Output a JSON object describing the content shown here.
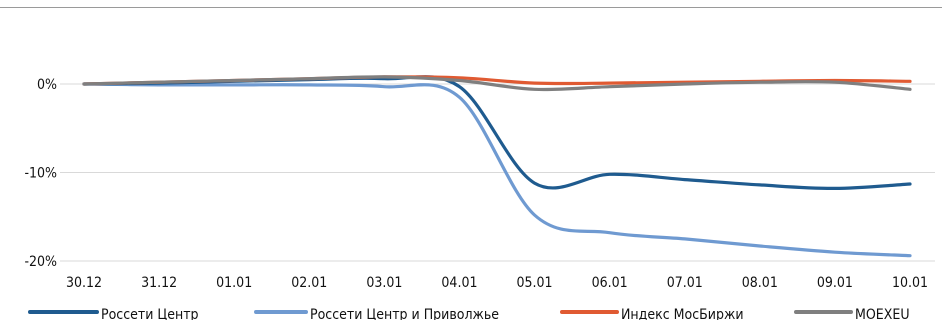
{
  "chart_data": {
    "type": "line",
    "title": "",
    "xlabel": "",
    "ylabel": "",
    "categories": [
      "30.12",
      "31.12",
      "01.01",
      "02.01",
      "03.01",
      "04.01",
      "05.01",
      "06.01",
      "07.01",
      "08.01",
      "09.01",
      "10.01"
    ],
    "y_ticks": [
      0,
      -10,
      -20
    ],
    "y_tick_labels": [
      "0%",
      "-10%",
      "-20%"
    ],
    "ylim": [
      -20,
      4
    ],
    "grid": "horizontal",
    "legend_position": "bottom",
    "series": [
      {
        "name": "Россети Центр",
        "color": "#1f5b8f",
        "values": [
          0,
          0.1,
          0.3,
          0.5,
          0.6,
          -0.3,
          -11.2,
          -10.2,
          -10.8,
          -11.4,
          -11.8,
          -11.3
        ]
      },
      {
        "name": "Россети Центр и Приволжье",
        "color": "#6f9ad1",
        "values": [
          0,
          -0.1,
          -0.1,
          -0.1,
          -0.3,
          -1.5,
          -14.8,
          -16.8,
          -17.5,
          -18.3,
          -19.0,
          -19.4
        ]
      },
      {
        "name": "Индекс МосБиржи",
        "color": "#e05a32",
        "values": [
          0,
          0.2,
          0.4,
          0.6,
          0.8,
          0.7,
          0.1,
          0.1,
          0.2,
          0.3,
          0.4,
          0.3
        ]
      },
      {
        "name": "MOEXEU",
        "color": "#7f7f7f",
        "values": [
          0,
          0.2,
          0.4,
          0.6,
          0.8,
          0.4,
          -0.6,
          -0.3,
          0.0,
          0.2,
          0.2,
          -0.6
        ]
      }
    ]
  }
}
